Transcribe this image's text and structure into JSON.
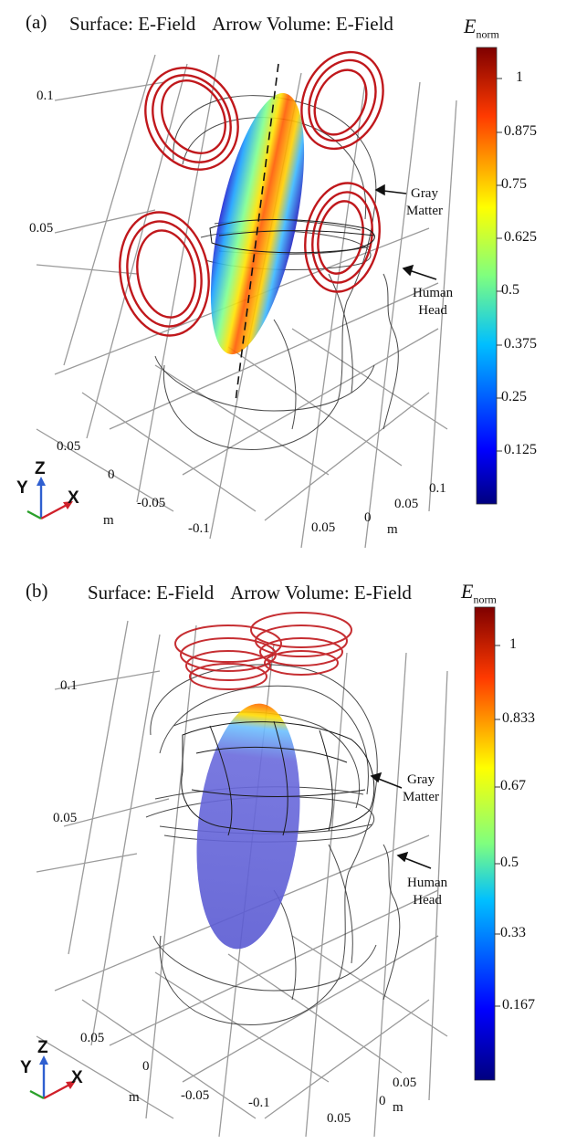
{
  "panel_a": {
    "tag": "(a)",
    "title_surface": "Surface: E-Field",
    "title_arrow": "Arrow Volume: E-Field",
    "colorbar_label": "E",
    "colorbar_sub": "norm",
    "colorbar_ticks": [
      "1",
      "0.875",
      "0.75",
      "0.625",
      "0.5",
      "0.375",
      "0.25",
      "0.125"
    ],
    "z_ticks": [
      "0.1",
      "0.05"
    ],
    "y_ticks": [
      "0.05",
      "0",
      "-0.05",
      "-0.1"
    ],
    "x_ticks": [
      "0.1",
      "0.05",
      "0.05",
      "0"
    ],
    "unit_left": "m",
    "unit_right": "m",
    "anno_gray": [
      "Gray",
      "Matter"
    ],
    "anno_head": [
      "Human",
      "Head"
    ],
    "triad": {
      "z": "Z",
      "y": "Y",
      "x": "X"
    }
  },
  "panel_b": {
    "tag": "(b)",
    "title_surface": "Surface: E-Field",
    "title_arrow": "Arrow Volume: E-Field",
    "colorbar_label": "E",
    "colorbar_sub": "norm",
    "colorbar_ticks": [
      "1",
      "0.833",
      "0.67",
      "0.5",
      "0.33",
      "0.167"
    ],
    "z_ticks": [
      "0.1",
      "0.05"
    ],
    "y_ticks": [
      "0.05",
      "0",
      "-0.05",
      "-0.1"
    ],
    "x_ticks": [
      "0.05",
      "0.05",
      "0"
    ],
    "unit_left": "m",
    "unit_right": "m",
    "anno_gray": [
      "Gray",
      "Matter"
    ],
    "anno_head": [
      "Human",
      "Head"
    ],
    "triad": {
      "z": "Z",
      "y": "Y",
      "x": "X"
    }
  },
  "colors": {
    "coil": "#c0181c",
    "wire": "#2b2b2b",
    "grid": "#9a9a9a",
    "jet": [
      "#00007f",
      "#0000ff",
      "#007fff",
      "#00ffff",
      "#7fff7f",
      "#ffff00",
      "#ff7f00",
      "#ff0000",
      "#7f0000"
    ],
    "brain_b": "#6a6adc"
  }
}
